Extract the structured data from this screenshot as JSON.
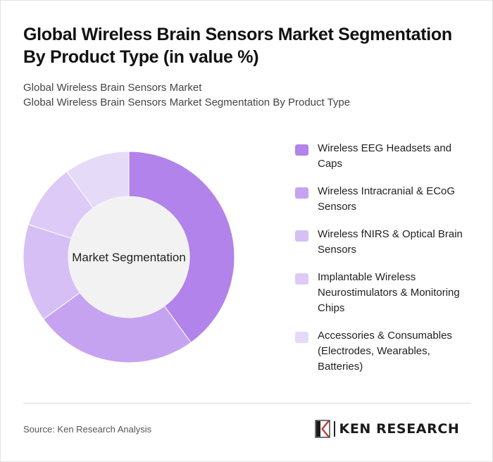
{
  "title": "Global Wireless Brain Sensors Market Segmentation By Product Type (in value %)",
  "subtitles": [
    "Global Wireless Brain Sensors Market",
    "Global Wireless Brain Sensors Market Segmentation By Product Type"
  ],
  "chart_data": {
    "type": "pie",
    "variant": "donut",
    "center_label": "Market Segmentation",
    "categories": [
      "Wireless EEG Headsets and Caps",
      "Wireless Intracranial & ECoG Sensors",
      "Wireless fNIRS & Optical Brain Sensors",
      "Implantable Wireless Neurostimulators & Monitoring Chips",
      "Accessories & Consumables (Electrodes, Wearables, Batteries)"
    ],
    "values": [
      40,
      25,
      15,
      10,
      10
    ],
    "colors": [
      "#b283ea",
      "#c6a3f0",
      "#d6bff5",
      "#ddcaf7",
      "#e6daf9"
    ],
    "legend_position": "right"
  },
  "footer": {
    "source": "Source: Ken Research Analysis",
    "logo_text": "KEN RESEARCH"
  }
}
